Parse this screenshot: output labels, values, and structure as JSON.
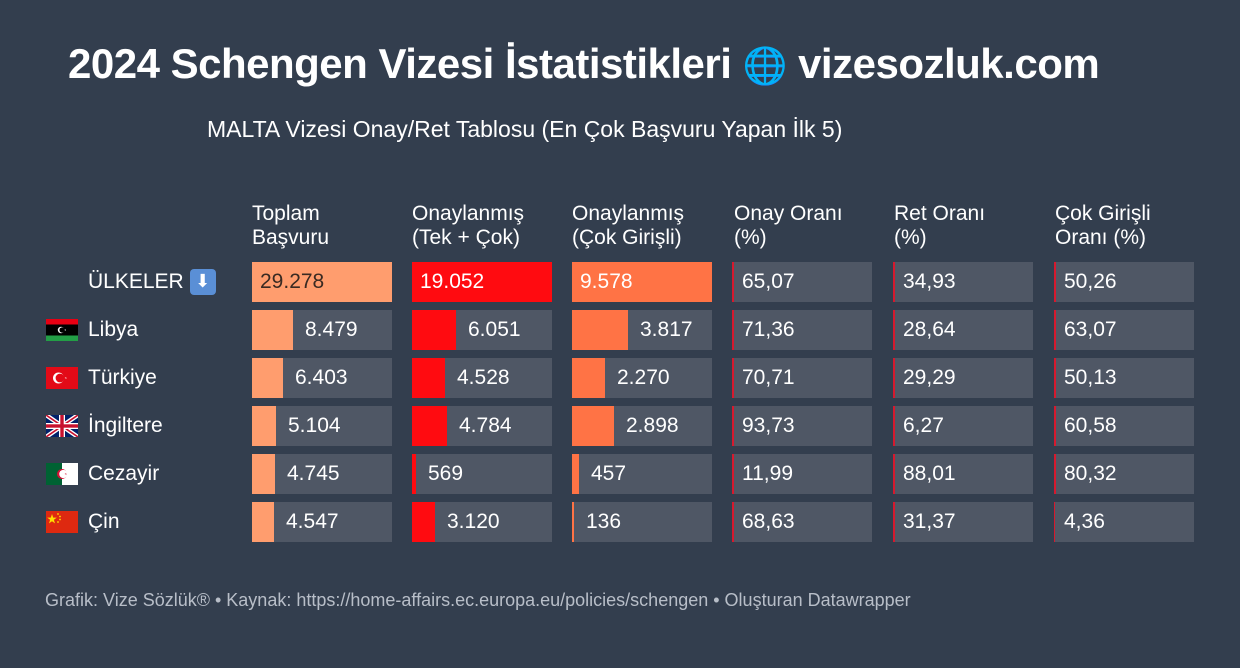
{
  "header": {
    "title_text": "2024 Schengen Vizesi İstatistikleri",
    "title_globe": "🌐",
    "title_site": "vizesozluk.com",
    "subtitle": "MALTA Vizesi Onay/Ret Tablosu (En Çok Başvuru Yapan İlk 5)"
  },
  "colors": {
    "background": "#333e4e",
    "cell": "#4f5765",
    "total": "#ff9d6e",
    "approved_single_multi": "#ff0b10",
    "approved_multi": "#ff7345",
    "rate_marker": "#d6192e"
  },
  "chart_data": {
    "type": "table",
    "columns": [
      {
        "line1": "Toplam",
        "line2": "Başvuru"
      },
      {
        "line1": "Onaylanmış",
        "line2": "(Tek + Çok)"
      },
      {
        "line1": "Onaylanmış",
        "line2": "(Çok Girişli)"
      },
      {
        "line1": "Onay Oranı",
        "line2": "(%)"
      },
      {
        "line1": "Ret Oranı",
        "line2": "(%)"
      },
      {
        "line1": "Çok Girişli",
        "line2": "Oranı (%)"
      }
    ],
    "rows": [
      {
        "label": "ÜLKELER",
        "label_icon": "⬇",
        "flag": "none",
        "values": [
          "29.278",
          "19.052",
          "9.578",
          "65,07",
          "34,93",
          "50,26"
        ]
      },
      {
        "label": "Libya",
        "flag": "libya",
        "values": [
          "8.479",
          "6.051",
          "3.817",
          "71,36",
          "28,64",
          "63,07"
        ]
      },
      {
        "label": "Türkiye",
        "flag": "turkey",
        "values": [
          "6.403",
          "4.528",
          "2.270",
          "70,71",
          "29,29",
          "50,13"
        ]
      },
      {
        "label": "İngiltere",
        "flag": "uk",
        "values": [
          "5.104",
          "4.784",
          "2.898",
          "93,73",
          "6,27",
          "60,58"
        ]
      },
      {
        "label": "Cezayir",
        "flag": "algeria",
        "values": [
          "4.745",
          "569",
          "457",
          "11,99",
          "88,01",
          "80,32"
        ]
      },
      {
        "label": "Çin",
        "flag": "china",
        "values": [
          "4.547",
          "3.120",
          "136",
          "68,63",
          "31,37",
          "4,36"
        ]
      }
    ],
    "numeric": {
      "total": [
        29278,
        8479,
        6403,
        5104,
        4745,
        4547
      ],
      "approved_single_multi": [
        19052,
        6051,
        4528,
        4784,
        569,
        3120
      ],
      "approved_multi": [
        9578,
        3817,
        2270,
        2898,
        457,
        136
      ],
      "approval_rate": [
        65.07,
        71.36,
        70.71,
        93.73,
        11.99,
        68.63
      ],
      "rejection_rate": [
        34.93,
        28.64,
        29.29,
        6.27,
        88.01,
        31.37
      ],
      "multi_entry_rate": [
        50.26,
        63.07,
        50.13,
        60.58,
        80.32,
        4.36
      ]
    }
  },
  "footer": {
    "text": "Grafik: Vize Sözlük® • Kaynak: https://home-affairs.ec.europa.eu/policies/schengen • Oluşturan Datawrapper"
  }
}
